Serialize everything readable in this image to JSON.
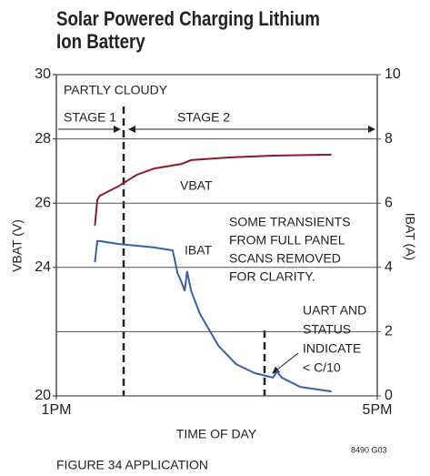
{
  "chart_data": {
    "type": "line",
    "title": "Solar Powered Charging Lithium Ion Battery",
    "xlabel": "TIME OF DAY",
    "ylabel": "VBAT (V)",
    "y2label": "IBAT (A)",
    "xlim": [
      13,
      17
    ],
    "xticks": [
      {
        "value": 13,
        "label": "1PM"
      },
      {
        "value": 17,
        "label": "5PM"
      }
    ],
    "ylim": [
      20,
      30
    ],
    "yticks": [
      20,
      24,
      26,
      28,
      30
    ],
    "y2lim": [
      0,
      10
    ],
    "y2ticks": [
      0,
      2,
      4,
      6,
      8,
      10
    ],
    "grid": true,
    "series": [
      {
        "name": "VBAT",
        "color": "#8b1a2e",
        "x": [
          13.48,
          13.51,
          13.54,
          13.77,
          14.0,
          14.22,
          14.56,
          14.68,
          15.13,
          15.7,
          16.43
        ],
        "values": [
          25.3,
          26.1,
          26.23,
          26.52,
          26.88,
          27.08,
          27.22,
          27.34,
          27.42,
          27.48,
          27.51
        ]
      },
      {
        "name": "IBAT",
        "color": "#3a5faa",
        "axis": "y2",
        "x": [
          13.48,
          13.51,
          13.54,
          13.77,
          14.22,
          14.45,
          14.51,
          14.56,
          14.6,
          14.63,
          14.68,
          14.79,
          15.02,
          15.24,
          15.47,
          15.7,
          15.75,
          15.81,
          16.04,
          16.43
        ],
        "values": [
          4.16,
          4.82,
          4.82,
          4.73,
          4.62,
          4.53,
          3.82,
          3.54,
          3.26,
          3.88,
          3.26,
          2.55,
          1.56,
          0.99,
          0.71,
          0.57,
          0.76,
          0.57,
          0.28,
          0.14
        ]
      }
    ],
    "annotations": {
      "condition": "PARTLY CLOUDY",
      "stage1": "STAGE 1",
      "stage2": "STAGE 2",
      "transients": [
        "SOME TRANSIENTS",
        "FROM FULL PANEL",
        "SCANS REMOVED",
        "FOR CLARITY."
      ],
      "uart": [
        "UART AND",
        "STATUS",
        "INDICATE",
        "< C/10"
      ]
    },
    "figure_caption": "FIGURE 34 APPLICATION",
    "figure_code": "8490 G03"
  }
}
